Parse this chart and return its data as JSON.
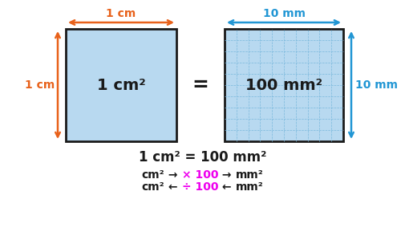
{
  "bg_color": "#ffffff",
  "square1_color": "#b8d9f0",
  "square2_color": "#b8d9f0",
  "square1_edge": "#1a1a1a",
  "square2_edge": "#1a1a1a",
  "orange_color": "#e8611a",
  "blue_color": "#2196d4",
  "black_color": "#1a1a1a",
  "magenta_color": "#ee00ee",
  "grid_color": "#7ab8dc",
  "grid_n": 10,
  "label_1cm_top": "1 cm",
  "label_1cm_left": "1 cm",
  "label_10mm_top": "10 mm",
  "label_10mm_right": "10 mm",
  "label_equals": "=",
  "label_sq1_inside": "1 cm²",
  "label_sq2_inside": "100 mm²",
  "eq_line": "1 cm² = 100 mm²"
}
